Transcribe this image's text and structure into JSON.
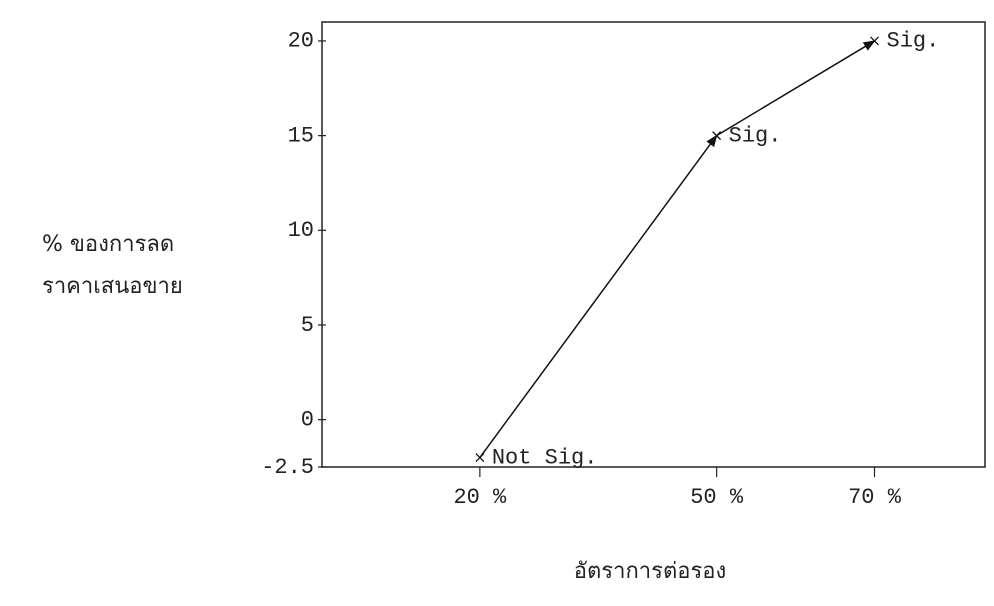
{
  "chart_data": {
    "type": "line",
    "y_label": [
      "% ของการลด",
      "ราคาเสนอขาย"
    ],
    "x_label": "อัตราการต่อรอง",
    "x": [
      20,
      50,
      70
    ],
    "values": [
      -2,
      15,
      20
    ],
    "point_labels": [
      "Not Sig.",
      "Sig.",
      "Sig."
    ],
    "color": "#111111",
    "xlim": [
      0,
      84
    ],
    "xticks": [
      {
        "value": 20,
        "label": "20 %"
      },
      {
        "value": 50,
        "label": "50 %"
      },
      {
        "value": 70,
        "label": "70 %"
      }
    ],
    "ylim": [
      -2.5,
      21
    ],
    "yticks": [
      -2.5,
      0,
      5,
      10,
      15,
      20
    ],
    "grid": false
  }
}
